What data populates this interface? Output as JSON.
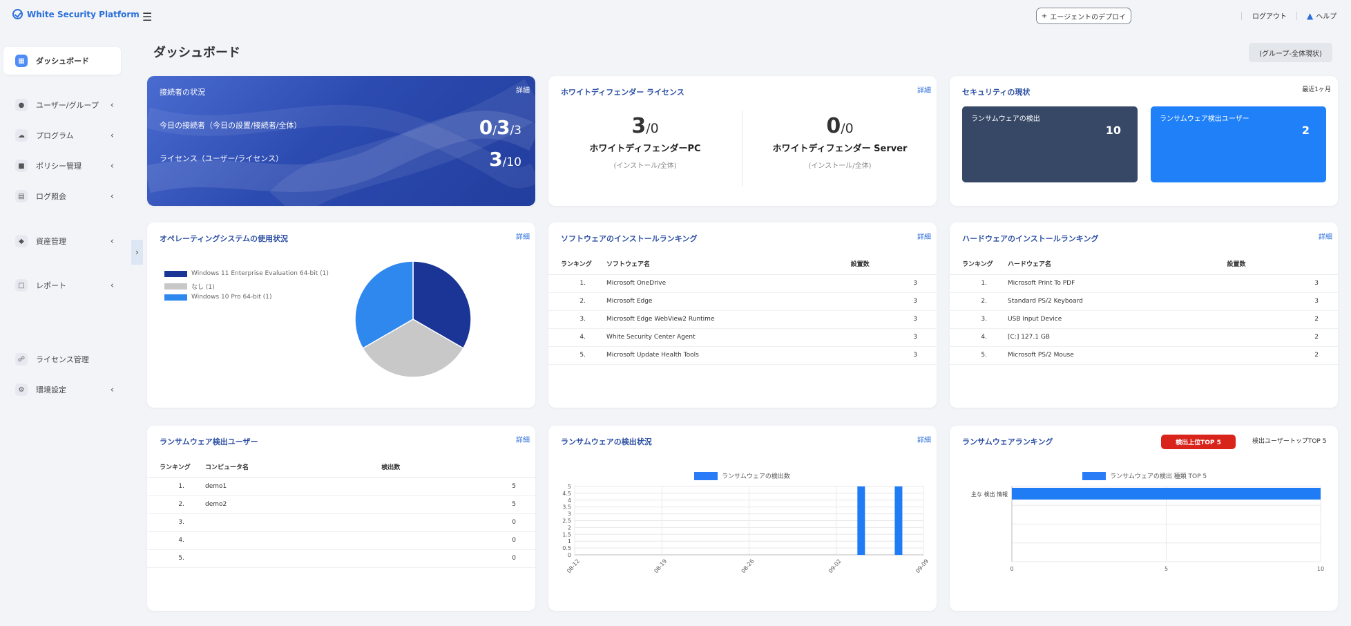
{
  "app": {
    "title": "White Security Platform"
  },
  "topbar": {
    "deploy_label": "エージェントのデプロイ",
    "deploy_icon": "plus-icon",
    "logout": "ログアウト",
    "help": "ヘルプ"
  },
  "sidebar": {
    "items": [
      {
        "label": "ダッシュボード",
        "icon": "grid-icon",
        "active": true
      },
      {
        "label": "ユーザー/グループ",
        "icon": "user-icon"
      },
      {
        "label": "プログラム",
        "icon": "cloud-icon"
      },
      {
        "label": "ポリシー管理",
        "icon": "shield-icon"
      },
      {
        "label": "ログ照会",
        "icon": "log-icon"
      },
      {
        "label": "資産管理",
        "icon": "layers-icon"
      },
      {
        "label": "レポート",
        "icon": "document-icon"
      },
      {
        "label": "ライセンス管理",
        "icon": "headset-icon"
      },
      {
        "label": "環境設定",
        "icon": "gear-icon"
      }
    ]
  },
  "page": {
    "title": "ダッシュボード",
    "group_button": "(グループ-全体現状)"
  },
  "detail_label": "詳細",
  "connection": {
    "title": "接続者の状況",
    "today_label": "今日の接続者（今日の設置/接続者/全体）",
    "today_a": "0",
    "today_b": "3",
    "today_c": "3",
    "license_label": "ライセンス（ユーザー/ライセンス）",
    "license_a": "3",
    "license_b": "10"
  },
  "defender": {
    "title": "ホワイトディフェンダー ライセンス",
    "pc": {
      "installed": "3",
      "total": "0",
      "name": "ホワイトディフェンダーPC",
      "sub": "(インストール/全体)"
    },
    "server": {
      "installed": "0",
      "total": "0",
      "name": "ホワイトディフェンダー Server",
      "sub": "(インストール/全体)"
    }
  },
  "security": {
    "title": "セキュリティの現状",
    "period": "最近1ヶ月",
    "ransom_detect_label": "ランサムウェアの検出",
    "ransom_detect_value": "10",
    "ransom_user_label": "ランサムウェア検出ユーザー",
    "ransom_user_value": "2",
    "colors": {
      "dark": "#364866",
      "blue": "#1f80f8"
    }
  },
  "os_usage": {
    "title": "オペレーティングシステムの使用状況",
    "chart_data": {
      "type": "pie",
      "labels": [
        "Windows 11 Enterprise Evaluation 64-bit (1)",
        "なし (1)",
        "Windows 10 Pro 64-bit (1)"
      ],
      "values": [
        1,
        1,
        1
      ],
      "colors": [
        "#1a3596",
        "#c8c8c8",
        "#2e88ee"
      ]
    }
  },
  "software": {
    "title": "ソフトウェアのインストールランキング",
    "headers": [
      "ランキング",
      "ソフトウェア名",
      "設置数"
    ],
    "rows": [
      {
        "rank": "1.",
        "name": "Microsoft OneDrive",
        "count": "3"
      },
      {
        "rank": "2.",
        "name": "Microsoft Edge",
        "count": "3"
      },
      {
        "rank": "3.",
        "name": "Microsoft Edge WebView2 Runtime",
        "count": "3"
      },
      {
        "rank": "4.",
        "name": "White Security Center Agent",
        "count": "3"
      },
      {
        "rank": "5.",
        "name": "Microsoft Update Health Tools",
        "count": "3"
      }
    ]
  },
  "hardware": {
    "title": "ハードウェアのインストールランキング",
    "headers": [
      "ランキング",
      "ハードウェア名",
      "設置数"
    ],
    "rows": [
      {
        "rank": "1.",
        "name": "Microsoft Print To PDF",
        "count": "3"
      },
      {
        "rank": "2.",
        "name": "Standard PS/2 Keyboard",
        "count": "3"
      },
      {
        "rank": "3.",
        "name": "USB Input Device",
        "count": "2"
      },
      {
        "rank": "4.",
        "name": "[C:] 127.1 GB",
        "count": "2"
      },
      {
        "rank": "5.",
        "name": "Microsoft PS/2 Mouse",
        "count": "2"
      }
    ]
  },
  "ransom_users": {
    "title": "ランサムウェア検出ユーザー",
    "headers": [
      "ランキング",
      "コンピュータ名",
      "検出数"
    ],
    "rows": [
      {
        "rank": "1.",
        "name": "demo1",
        "count": "5"
      },
      {
        "rank": "2.",
        "name": "demo2",
        "count": "5"
      },
      {
        "rank": "3.",
        "name": "",
        "count": "0"
      },
      {
        "rank": "4.",
        "name": "",
        "count": "0"
      },
      {
        "rank": "5.",
        "name": "",
        "count": "0"
      }
    ]
  },
  "ransom_status": {
    "title": "ランサムウェアの検出状況",
    "chart_data": {
      "type": "bar",
      "series_name": "ランサムウェアの検出数",
      "color": "#1f7cf5",
      "x_ticks": [
        "08-12",
        "08-19",
        "08-26",
        "09-02",
        "09-09"
      ],
      "y_ticks": [
        "0",
        "0.5",
        "1",
        "1.5",
        "2",
        "2.5",
        "3",
        "3.5",
        "4",
        "4.5",
        "5"
      ],
      "ylim": [
        0,
        5
      ],
      "bars": [
        {
          "date": "09-04",
          "value": 5
        },
        {
          "date": "09-07",
          "value": 5
        }
      ]
    }
  },
  "ransom_ranking": {
    "title": "ランサムウェアランキング",
    "top5_button": "検出上位TOP 5",
    "top5_user": "検出ユーザートップTOP 5",
    "chart_data": {
      "type": "bar",
      "orientation": "horizontal",
      "series_name": "ランサムウェアの検出 種類 TOP 5",
      "color": "#1f7cf5",
      "categories": [
        "主な 検出 情報"
      ],
      "values": [
        10
      ],
      "x_ticks": [
        "0",
        "5",
        "10"
      ],
      "xlim": [
        0,
        10
      ]
    }
  }
}
